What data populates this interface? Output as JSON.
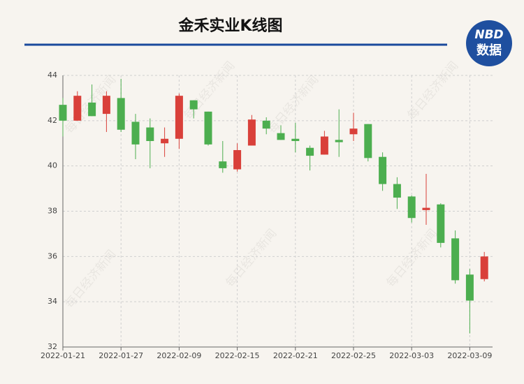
{
  "chart_data": {
    "type": "candlestick",
    "title": "金禾实业K线图",
    "categories": [
      "2022-01-21",
      null,
      null,
      null,
      "2022-01-27",
      null,
      null,
      null,
      "2022-02-09",
      null,
      null,
      null,
      "2022-02-15",
      null,
      null,
      null,
      "2022-02-21",
      null,
      null,
      null,
      "2022-02-25",
      null,
      null,
      null,
      "2022-03-03",
      null,
      null,
      null,
      "2022-03-09",
      null
    ],
    "open": [
      42.7,
      42.0,
      42.8,
      42.3,
      43.0,
      41.95,
      41.7,
      41.0,
      41.2,
      42.9,
      42.4,
      40.2,
      39.85,
      40.9,
      42.0,
      41.45,
      41.2,
      40.8,
      40.5,
      41.15,
      41.4,
      41.85,
      40.4,
      39.2,
      38.65,
      38.05,
      38.3,
      36.8,
      35.2,
      35.0
    ],
    "close": [
      42.0,
      43.1,
      42.2,
      43.1,
      41.6,
      40.95,
      41.1,
      41.2,
      43.1,
      42.5,
      40.95,
      39.9,
      40.7,
      42.05,
      41.65,
      41.15,
      41.1,
      40.45,
      41.3,
      41.05,
      41.65,
      40.35,
      39.2,
      38.6,
      37.7,
      38.15,
      36.6,
      34.95,
      34.05,
      36.0
    ],
    "low": [
      41.3,
      42.0,
      42.2,
      41.5,
      41.5,
      40.3,
      39.9,
      40.4,
      40.75,
      42.1,
      40.9,
      39.7,
      39.75,
      40.9,
      41.4,
      41.15,
      40.6,
      39.8,
      40.5,
      40.4,
      41.1,
      40.2,
      38.9,
      38.1,
      37.5,
      37.4,
      36.4,
      34.8,
      32.6,
      34.9
    ],
    "high": [
      43.0,
      43.3,
      43.6,
      43.3,
      43.85,
      42.3,
      42.1,
      41.7,
      43.2,
      42.9,
      42.4,
      41.1,
      41.0,
      42.25,
      42.15,
      41.8,
      41.9,
      40.9,
      41.55,
      42.5,
      42.35,
      41.85,
      40.6,
      39.5,
      38.7,
      39.65,
      38.35,
      37.15,
      35.45,
      36.2
    ],
    "up_color": "#d9403a",
    "down_color": "#4cae4f",
    "ylim": [
      32,
      44
    ],
    "yticks": [
      32,
      34,
      36,
      38,
      40,
      42,
      44
    ],
    "grid": true
  },
  "logo": {
    "line1": "NBD",
    "line2": "数据"
  },
  "watermark": "每日经济新闻"
}
